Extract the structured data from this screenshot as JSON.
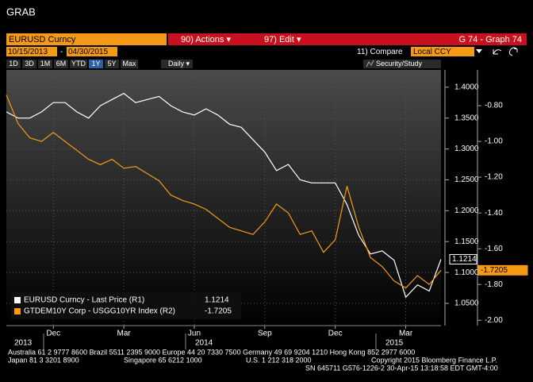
{
  "header": {
    "title": "GRAB"
  },
  "toolbar": {
    "security": "EURUSD Curncy",
    "actions": "90) Actions ▾",
    "edit": "97) Edit ▾",
    "graph": "G 74 - Graph 74",
    "start_date": "10/15/2013",
    "date_separator": "-",
    "end_date": "04/30/2015",
    "compare": "11) Compare",
    "currency": "Local CCY",
    "ranges": [
      "1D",
      "3D",
      "1M",
      "6M",
      "YTD",
      "1Y",
      "5Y",
      "Max"
    ],
    "frequency": "Daily ▾",
    "study": "Security/Study"
  },
  "chart_data": {
    "type": "line",
    "categories": [
      null,
      null,
      null,
      null,
      "Dec",
      null,
      null,
      null,
      null,
      null,
      "Mar",
      null,
      null,
      null,
      null,
      null,
      "Jun",
      null,
      null,
      null,
      null,
      null,
      "Sep",
      null,
      null,
      null,
      null,
      null,
      "Dec",
      null,
      null,
      null,
      null,
      null,
      "Mar",
      null,
      null,
      null
    ],
    "years": [
      "2013",
      "2014",
      "2015"
    ],
    "series": [
      {
        "name": "EURUSD Curncy - Last Price (R1)",
        "color": "#ffffff",
        "values": [
          1.36,
          1.35,
          1.35,
          1.36,
          1.375,
          1.375,
          1.36,
          1.35,
          1.37,
          1.38,
          1.39,
          1.375,
          1.38,
          1.385,
          1.37,
          1.36,
          1.355,
          1.365,
          1.355,
          1.34,
          1.335,
          1.315,
          1.295,
          1.265,
          1.275,
          1.25,
          1.245,
          1.245,
          1.245,
          1.21,
          1.16,
          1.13,
          1.135,
          1.12,
          1.06,
          1.08,
          1.07,
          1.1214
        ]
      },
      {
        "name": "GTDEM10Y Corp - USGG10YR Index (R2)",
        "color": "#f59a16",
        "axis": "y2",
        "values": [
          -0.74,
          -0.9,
          -0.98,
          -1.0,
          -0.95,
          -1.0,
          -1.05,
          -1.1,
          -1.13,
          -1.1,
          -1.15,
          -1.14,
          -1.18,
          -1.22,
          -1.3,
          -1.33,
          -1.35,
          -1.38,
          -1.43,
          -1.48,
          -1.5,
          -1.52,
          -1.45,
          -1.35,
          -1.4,
          -1.52,
          -1.5,
          -1.62,
          -1.55,
          -1.25,
          -1.48,
          -1.65,
          -1.7,
          -1.78,
          -1.82,
          -1.75,
          -1.8,
          -1.7205
        ]
      }
    ],
    "ylim": [
      1.014,
      1.428
    ],
    "yticks": [
      {
        "value": 1.05,
        "label": "1.0500"
      },
      {
        "value": 1.1,
        "label": "1.1000"
      },
      {
        "value": 1.15,
        "label": "1.1500"
      },
      {
        "value": 1.2,
        "label": "1.2000"
      },
      {
        "value": 1.25,
        "label": "1.2500"
      },
      {
        "value": 1.3,
        "label": "1.3000"
      },
      {
        "value": 1.35,
        "label": "1.3500"
      },
      {
        "value": 1.4,
        "label": "1.4000"
      }
    ],
    "y2lim": [
      -2.03,
      -0.6
    ],
    "y2ticks": [
      {
        "value": -0.8,
        "label": "-0.80"
      },
      {
        "value": -1.0,
        "label": "-1.00"
      },
      {
        "value": -1.2,
        "label": "-1.20"
      },
      {
        "value": -1.4,
        "label": "-1.40"
      },
      {
        "value": -1.6,
        "label": "-1.60"
      },
      {
        "value": -1.8,
        "label": "-1.80"
      },
      {
        "value": -2.0,
        "label": "-2.00"
      }
    ],
    "grid": true
  },
  "footer": {
    "line1": "Australia 61 2 9777 8600 Brazil 5511 2395 9000 Europe 44 20 7330 7500 Germany 49 69 9204 1210 Hong Kong 852 2977 6000",
    "line2a": "Japan 81 3 3201 8900",
    "line2b": "Singapore 65 6212 1000",
    "line2c": "U.S. 1 212 318 2000",
    "line2d": "Copyright 2015 Bloomberg Finance L.P.",
    "line3": "SN 645711 G576-1226-2 30-Apr-15 13:18:58 EDT  GMT-4:00"
  }
}
